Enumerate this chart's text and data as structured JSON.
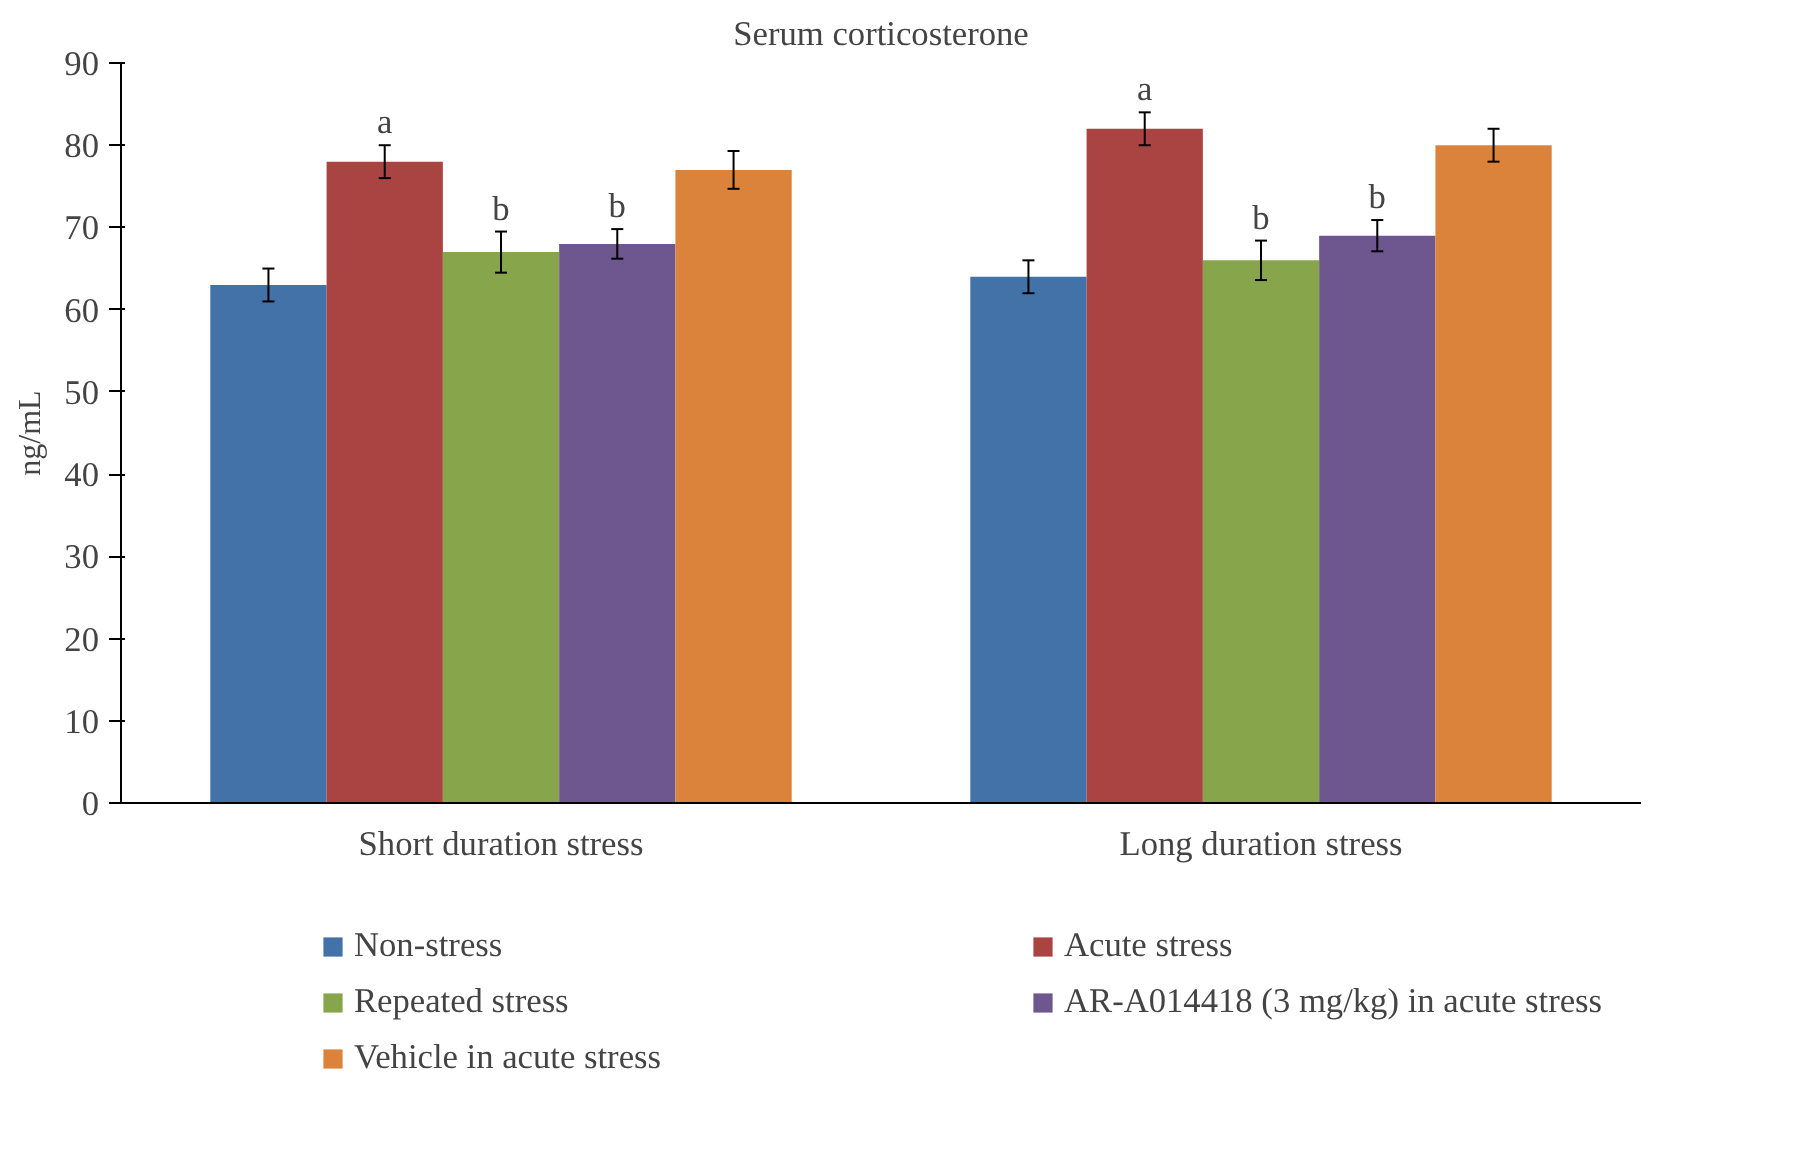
{
  "chart_data": {
    "type": "bar",
    "title": "Serum corticosterone",
    "ylabel": "ng/mL",
    "categories": [
      "Short duration stress",
      "Long duration stress"
    ],
    "series": [
      {
        "name": "Non-stress",
        "color": "#4372a8",
        "values": [
          63,
          64
        ],
        "errors": [
          2,
          2
        ]
      },
      {
        "name": "Acute stress",
        "color": "#a94442",
        "values": [
          78,
          82
        ],
        "errors": [
          2,
          2
        ],
        "value_labels": [
          "a",
          "a"
        ]
      },
      {
        "name": "Repeated stress",
        "color": "#87a54b",
        "values": [
          67,
          66
        ],
        "errors": [
          2.5,
          2.4
        ],
        "value_labels": [
          "b",
          "b"
        ]
      },
      {
        "name": "AR-A014418 (3 mg/kg) in acute stress",
        "color": "#6e578f",
        "values": [
          68,
          69
        ],
        "errors": [
          1.8,
          1.9
        ],
        "value_labels": [
          "b",
          "b"
        ]
      },
      {
        "name": "Vehicle in acute stress",
        "color": "#dc833b",
        "values": [
          77,
          80
        ],
        "errors": [
          2.3,
          2
        ]
      }
    ],
    "ylim": [
      0,
      90
    ],
    "yticks": [
      0,
      10,
      20,
      30,
      40,
      50,
      60,
      70,
      80,
      90
    ],
    "grid": false,
    "legend": "bottom"
  }
}
